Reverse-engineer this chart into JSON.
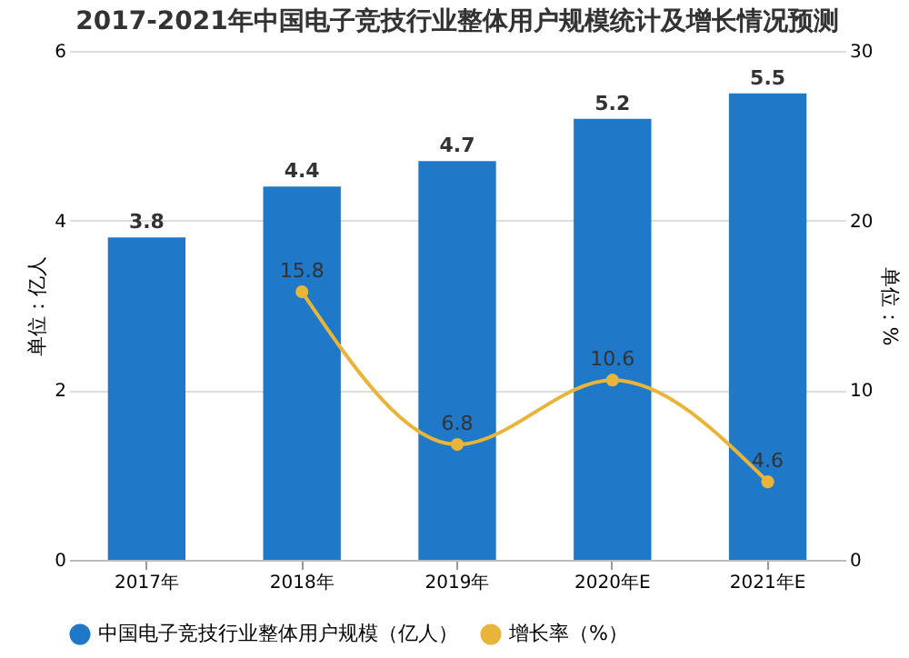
{
  "chart_data": {
    "type": "bar",
    "title": "2017-2021年中国电子竞技行业整体用户规模统计及增长情况预测",
    "categories": [
      "2017年",
      "2018年",
      "2019年",
      "2020年E",
      "2021年E"
    ],
    "series": [
      {
        "name": "中国电子竞技行业整体用户规模（亿人）",
        "color": "#1f78c8",
        "values": [
          3.8,
          4.4,
          4.7,
          5.2,
          5.5
        ]
      },
      {
        "name": "增长率（%）",
        "type": "line",
        "axis": "y2",
        "color": "#e8b53a",
        "marker": "circle",
        "values": [
          null,
          15.8,
          6.8,
          10.6,
          4.6
        ]
      }
    ],
    "ylabel": "单位：亿人",
    "y2label": "单位：%",
    "ylim": [
      0,
      6
    ],
    "yticks": [
      0,
      2,
      4,
      6
    ],
    "y2lim": [
      0,
      30
    ],
    "y2ticks": [
      0,
      10,
      20,
      30
    ],
    "grid": "y",
    "legend": "bottom",
    "data_labels": true
  }
}
